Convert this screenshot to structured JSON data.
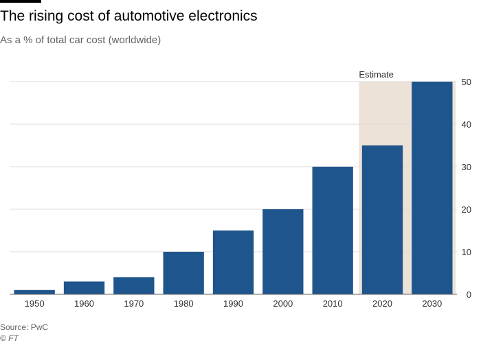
{
  "chart_data": {
    "type": "bar",
    "title": "The rising cost of automotive electronics",
    "subtitle": "As a % of total car cost (worldwide)",
    "categories": [
      "1950",
      "1960",
      "1970",
      "1980",
      "1990",
      "2000",
      "2010",
      "2020",
      "2030"
    ],
    "values": [
      1,
      3,
      4,
      10,
      15,
      20,
      30,
      35,
      50
    ],
    "ylim": [
      0,
      50
    ],
    "yticks": [
      0,
      10,
      20,
      30,
      40,
      50
    ],
    "y_axis_side": "right",
    "grid": true,
    "estimate": {
      "label": "Estimate",
      "categories": [
        "2020",
        "2030"
      ]
    },
    "colors": {
      "bar": "#1e558c",
      "estimate_band": "#ede2d8",
      "grid": "#e0dbd6"
    }
  },
  "footer": {
    "source": "Source: PwC",
    "credit": "© FT"
  }
}
